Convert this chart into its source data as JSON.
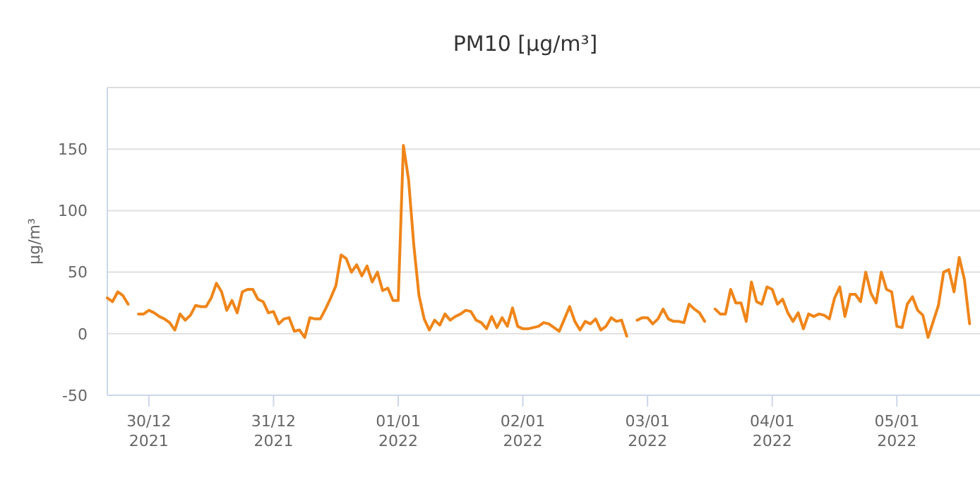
{
  "chart_data": {
    "type": "line",
    "title": "PM10 [µg/m³]",
    "ylabel": "µg/m³",
    "x": [
      "2021-12-29T16:00",
      "2021-12-29T17:00",
      "2021-12-29T18:00",
      "2021-12-29T19:00",
      "2021-12-29T20:00",
      "2021-12-29T21:00",
      "2021-12-29T22:00",
      "2021-12-29T23:00",
      "2021-12-30T00:00",
      "2021-12-30T01:00",
      "2021-12-30T02:00",
      "2021-12-30T03:00",
      "2021-12-30T04:00",
      "2021-12-30T05:00",
      "2021-12-30T06:00",
      "2021-12-30T07:00",
      "2021-12-30T08:00",
      "2021-12-30T09:00",
      "2021-12-30T10:00",
      "2021-12-30T11:00",
      "2021-12-30T12:00",
      "2021-12-30T13:00",
      "2021-12-30T14:00",
      "2021-12-30T15:00",
      "2021-12-30T16:00",
      "2021-12-30T17:00",
      "2021-12-30T18:00",
      "2021-12-30T19:00",
      "2021-12-30T20:00",
      "2021-12-30T21:00",
      "2021-12-30T22:00",
      "2021-12-30T23:00",
      "2021-12-31T00:00",
      "2021-12-31T01:00",
      "2021-12-31T02:00",
      "2021-12-31T03:00",
      "2021-12-31T04:00",
      "2021-12-31T05:00",
      "2021-12-31T06:00",
      "2021-12-31T07:00",
      "2021-12-31T08:00",
      "2021-12-31T09:00",
      "2021-12-31T10:00",
      "2021-12-31T11:00",
      "2021-12-31T12:00",
      "2021-12-31T13:00",
      "2021-12-31T14:00",
      "2021-12-31T15:00",
      "2021-12-31T16:00",
      "2021-12-31T17:00",
      "2021-12-31T18:00",
      "2021-12-31T19:00",
      "2021-12-31T20:00",
      "2021-12-31T21:00",
      "2021-12-31T22:00",
      "2021-12-31T23:00",
      "2022-01-01T00:00",
      "2022-01-01T01:00",
      "2022-01-01T02:00",
      "2022-01-01T03:00",
      "2022-01-01T04:00",
      "2022-01-01T05:00",
      "2022-01-01T06:00",
      "2022-01-01T07:00",
      "2022-01-01T08:00",
      "2022-01-01T09:00",
      "2022-01-01T10:00",
      "2022-01-01T11:00",
      "2022-01-01T12:00",
      "2022-01-01T13:00",
      "2022-01-01T14:00",
      "2022-01-01T15:00",
      "2022-01-01T16:00",
      "2022-01-01T17:00",
      "2022-01-01T18:00",
      "2022-01-01T19:00",
      "2022-01-01T20:00",
      "2022-01-01T21:00",
      "2022-01-01T22:00",
      "2022-01-01T23:00",
      "2022-01-02T00:00",
      "2022-01-02T01:00",
      "2022-01-02T02:00",
      "2022-01-02T03:00",
      "2022-01-02T04:00",
      "2022-01-02T05:00",
      "2022-01-02T07:00",
      "2022-01-02T08:00",
      "2022-01-02T09:00",
      "2022-01-02T10:00",
      "2022-01-02T11:00",
      "2022-01-02T12:00",
      "2022-01-02T13:00",
      "2022-01-02T14:00",
      "2022-01-02T15:00",
      "2022-01-02T16:00",
      "2022-01-02T17:00",
      "2022-01-02T18:00",
      "2022-01-02T19:00",
      "2022-01-02T20:00",
      "2022-01-02T21:00",
      "2022-01-02T22:00",
      "2022-01-02T23:00",
      "2022-01-03T00:00",
      "2022-01-03T01:00",
      "2022-01-03T02:00",
      "2022-01-03T03:00",
      "2022-01-03T04:00",
      "2022-01-03T05:00",
      "2022-01-03T06:00",
      "2022-01-03T07:00",
      "2022-01-03T08:00",
      "2022-01-03T09:00",
      "2022-01-03T10:00",
      "2022-01-03T11:00",
      "2022-01-03T12:00",
      "2022-01-03T13:00",
      "2022-01-03T14:00",
      "2022-01-03T15:00",
      "2022-01-03T16:00",
      "2022-01-03T17:00",
      "2022-01-03T18:00",
      "2022-01-03T19:00",
      "2022-01-03T20:00",
      "2022-01-03T21:00",
      "2022-01-03T22:00",
      "2022-01-03T23:00",
      "2022-01-04T00:00",
      "2022-01-04T01:00",
      "2022-01-04T02:00",
      "2022-01-04T03:00",
      "2022-01-04T04:00",
      "2022-01-04T05:00",
      "2022-01-04T06:00",
      "2022-01-04T07:00",
      "2022-01-04T08:00",
      "2022-01-04T09:00",
      "2022-01-04T10:00",
      "2022-01-04T11:00",
      "2022-01-04T12:00",
      "2022-01-04T13:00",
      "2022-01-04T14:00",
      "2022-01-04T15:00",
      "2022-01-04T16:00",
      "2022-01-04T17:00",
      "2022-01-04T18:00",
      "2022-01-04T19:00",
      "2022-01-04T20:00",
      "2022-01-04T21:00",
      "2022-01-04T22:00",
      "2022-01-04T23:00",
      "2022-01-05T00:00",
      "2022-01-05T01:00",
      "2022-01-05T02:00",
      "2022-01-05T03:00",
      "2022-01-05T04:00",
      "2022-01-05T05:00",
      "2022-01-05T06:00",
      "2022-01-05T07:00",
      "2022-01-05T08:00",
      "2022-01-05T09:00",
      "2022-01-05T10:00",
      "2022-01-05T11:00",
      "2022-01-05T12:00",
      "2022-01-05T13:00",
      "2022-01-05T14:00"
    ],
    "series": [
      {
        "color": "#ef8519",
        "values": [
          29,
          26,
          34,
          31,
          24,
          null,
          16,
          16,
          19,
          17,
          14,
          12,
          9,
          3,
          16,
          11,
          15,
          23,
          22,
          22,
          29,
          41,
          34,
          19,
          27,
          17,
          34,
          36,
          36,
          28,
          26,
          17,
          18,
          8,
          12,
          13,
          2,
          3,
          -3,
          13,
          12,
          12,
          20,
          29,
          39,
          64,
          61,
          50,
          56,
          47,
          55,
          42,
          50,
          35,
          37,
          27,
          27,
          153,
          125,
          72,
          31,
          12,
          3,
          11,
          7,
          16,
          11,
          14,
          16,
          19,
          18,
          11,
          9,
          4,
          14,
          5,
          13,
          6,
          21,
          6,
          4,
          4,
          5,
          6,
          9,
          8,
          2,
          12,
          22,
          10,
          3,
          10,
          8,
          12,
          3,
          6,
          13,
          10,
          11,
          -2,
          null,
          11,
          13,
          13,
          8,
          12,
          20,
          12,
          10,
          10,
          9,
          24,
          20,
          17,
          10,
          null,
          20,
          16,
          16,
          36,
          25,
          25,
          10,
          42,
          26,
          24,
          38,
          36,
          24,
          28,
          17,
          10,
          17,
          4,
          16,
          14,
          16,
          15,
          12,
          29,
          38,
          14,
          32,
          32,
          26,
          50,
          33,
          25,
          50,
          36,
          34,
          6,
          5,
          24,
          30,
          19,
          15,
          -3,
          10,
          23,
          50,
          52,
          34,
          62,
          44,
          8
        ]
      }
    ],
    "xlim": [
      "2021-12-29T16:00",
      "2022-01-05T16:00"
    ],
    "xticks": [
      {
        "value": "2021-12-30",
        "label": "30/12 2021"
      },
      {
        "value": "2021-12-31",
        "label": "31/12 2021"
      },
      {
        "value": "2022-01-01",
        "label": "01/01 2022"
      },
      {
        "value": "2022-01-02",
        "label": "02/01 2022"
      },
      {
        "value": "2022-01-03",
        "label": "03/01 2022"
      },
      {
        "value": "2022-01-04",
        "label": "04/01 2022"
      },
      {
        "value": "2022-01-05",
        "label": "05/01 2022"
      }
    ],
    "ylim": [
      -50,
      200
    ],
    "yticks": [
      -50,
      0,
      50,
      100,
      150
    ],
    "grid": "y",
    "marker": "none",
    "line_style": "solid"
  }
}
